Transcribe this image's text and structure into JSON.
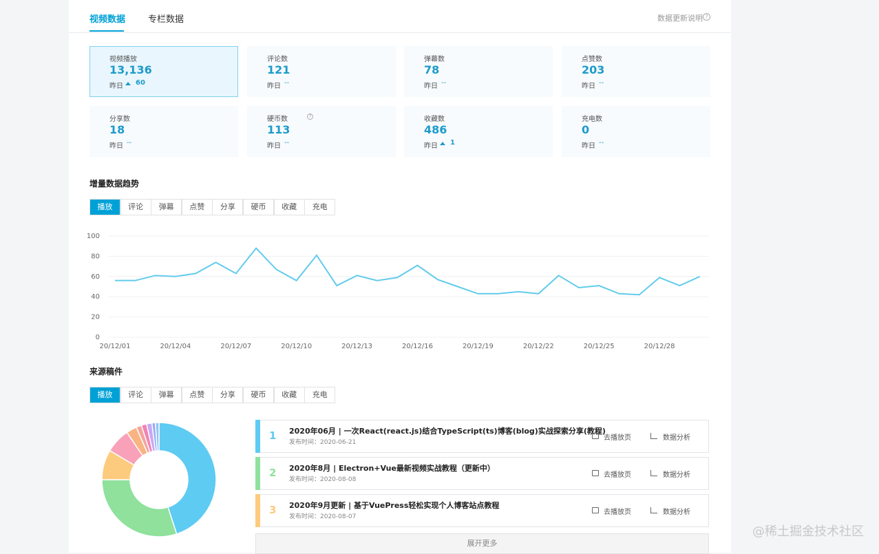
{
  "tabs": [
    "视频数据",
    "专栏数据"
  ],
  "update_note": "数据更新说明",
  "stats": [
    {
      "label": "视频播放",
      "value": "13,136",
      "yesterday": "昨日",
      "delta": "60",
      "up": true,
      "selected": true
    },
    {
      "label": "评论数",
      "value": "121",
      "yesterday": "昨日",
      "delta": "--"
    },
    {
      "label": "弹幕数",
      "value": "78",
      "yesterday": "昨日",
      "delta": "--"
    },
    {
      "label": "点赞数",
      "value": "203",
      "yesterday": "昨日",
      "delta": "--"
    },
    {
      "label": "分享数",
      "value": "18",
      "yesterday": "昨日",
      "delta": "--"
    },
    {
      "label": "硬币数",
      "value": "113",
      "yesterday": "昨日",
      "delta": "--",
      "help": true
    },
    {
      "label": "收藏数",
      "value": "486",
      "yesterday": "昨日",
      "delta": "1",
      "up": true
    },
    {
      "label": "充电数",
      "value": "0",
      "yesterday": "昨日",
      "delta": "--"
    }
  ],
  "trend_title": "增量数据趋势",
  "source_title": "来源稿件",
  "metric_tabs": [
    "播放",
    "评论",
    "弹幕",
    "点赞",
    "分享",
    "硬币",
    "收藏",
    "充电"
  ],
  "chart_data": [
    {
      "type": "line",
      "categories": [
        "20/12/01",
        null,
        null,
        "20/12/04",
        null,
        null,
        "20/12/07",
        null,
        null,
        "20/12/10",
        null,
        null,
        "20/12/13",
        null,
        null,
        "20/12/16",
        null,
        null,
        "20/12/19",
        null,
        null,
        "20/12/22",
        null,
        null,
        "20/12/25",
        null,
        null,
        "20/12/28",
        null,
        null
      ],
      "values": [
        56,
        56,
        61,
        60,
        63,
        74,
        63,
        88,
        67,
        56,
        81,
        51,
        61,
        56,
        59,
        71,
        57,
        50,
        43,
        43,
        45,
        43,
        61,
        49,
        51,
        43,
        42,
        59,
        51,
        60
      ],
      "color": "#62cbec",
      "ylim": [
        0,
        100
      ],
      "yticks": [
        0,
        20,
        40,
        60,
        80,
        100
      ],
      "grid": true
    },
    {
      "type": "pie",
      "donut": true,
      "values": [
        45,
        30,
        8.5,
        7,
        3,
        1.5,
        1.5,
        1.5,
        1,
        1
      ],
      "colors": [
        "#5ecbf3",
        "#8fe19c",
        "#fdcb7e",
        "#f8a1b8",
        "#f9b483",
        "#f5a29d",
        "#f283b4",
        "#c6a9f2",
        "#9aaaf6",
        "#8ec3f6"
      ]
    }
  ],
  "videos": [
    {
      "rank": "1",
      "title": "2020年06月 | 一次React(react.js)结合TypeScript(ts)博客(blog)实战探索分享(教程)",
      "date": "发布时间：2020-06-21",
      "color": "#5ecbf3"
    },
    {
      "rank": "2",
      "title": "2020年8月 | Electron+Vue最新视频实战教程（更新中）",
      "date": "发布时间：2020-08-08",
      "color": "#8fe19c"
    },
    {
      "rank": "3",
      "title": "2020年9月更新 | 基于VuePress轻松实现个人博客站点教程",
      "date": "发布时间：2020-08-07",
      "color": "#fdcb7e"
    }
  ],
  "actions": [
    "去播放页",
    "数据分析"
  ],
  "more": "展开更多",
  "watermark": "@稀土掘金技术社区"
}
